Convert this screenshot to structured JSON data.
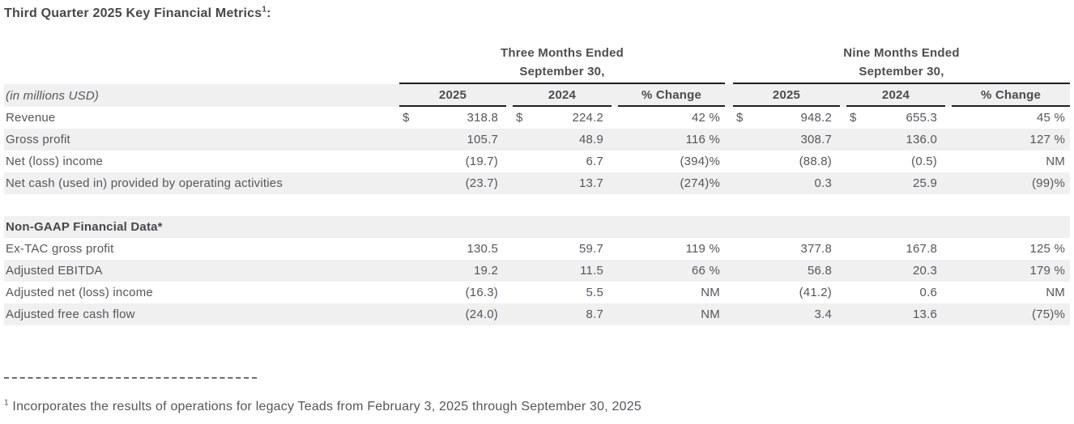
{
  "title": {
    "text": "Third Quarter 2025 Key Financial Metrics",
    "footnote_ref": "1",
    "suffix": ":"
  },
  "table": {
    "groups": [
      {
        "line1": "Three Months Ended",
        "line2": "September 30,"
      },
      {
        "line1": "Nine Months Ended",
        "line2": "September 30,"
      }
    ],
    "unit_label": "(in millions USD)",
    "columns": {
      "tm25": "2025",
      "tm24": "2024",
      "tmchg": "% Change",
      "nm25": "2025",
      "nm24": "2024",
      "nmchg": "% Change"
    },
    "rows": [
      {
        "label": "Revenue",
        "tm25cur": "$",
        "tm25": "318.8",
        "tm24cur": "$",
        "tm24": "224.2",
        "tmchg": "42 %",
        "nm25cur": "$",
        "nm25": "948.2",
        "nm24cur": "$",
        "nm24": "655.3",
        "nmchg": "45 %"
      },
      {
        "label": "Gross profit",
        "tm25": "105.7",
        "tm24": "48.9",
        "tmchg": "116 %",
        "nm25": "308.7",
        "nm24": "136.0",
        "nmchg": "127 %"
      },
      {
        "label": "Net (loss) income",
        "tm25": "(19.7)",
        "tm24": "6.7",
        "tmchg": "(394)%",
        "nm25": "(88.8)",
        "nm24": "(0.5)",
        "nmchg": "NM"
      },
      {
        "label": "Net cash (used in) provided by operating activities",
        "tm25": "(23.7)",
        "tm24": "13.7",
        "tmchg": "(274)%",
        "nm25": "0.3",
        "nm24": "25.9",
        "nmchg": "(99)%"
      },
      {
        "label": "Non-GAAP Financial Data*"
      },
      {
        "label": "Ex-TAC gross profit",
        "tm25": "130.5",
        "tm24": "59.7",
        "tmchg": "119 %",
        "nm25": "377.8",
        "nm24": "167.8",
        "nmchg": "125 %"
      },
      {
        "label": "Adjusted EBITDA",
        "tm25": "19.2",
        "tm24": "11.5",
        "tmchg": "66 %",
        "nm25": "56.8",
        "nm24": "20.3",
        "nmchg": "179 %"
      },
      {
        "label": "Adjusted net (loss) income",
        "tm25": "(16.3)",
        "tm24": "5.5",
        "tmchg": "NM",
        "nm25": "(41.2)",
        "nm24": "0.6",
        "nmchg": "NM"
      },
      {
        "label": "Adjusted free cash flow",
        "tm25": "(24.0)",
        "tm24": "8.7",
        "tmchg": "NM",
        "nm25": "3.4",
        "nm24": "13.6",
        "nmchg": "(75)%"
      }
    ]
  },
  "separator": {
    "type": "dashed-line"
  },
  "footnote": {
    "ref": "1",
    "text": "Incorporates the results of operations for legacy Teads from February 3, 2025 through September 30, 2025"
  },
  "colors": {
    "stripe": "#f0f0f1",
    "text": "#55565a",
    "heading": "#47484b",
    "rule": "#1f1f1f"
  }
}
